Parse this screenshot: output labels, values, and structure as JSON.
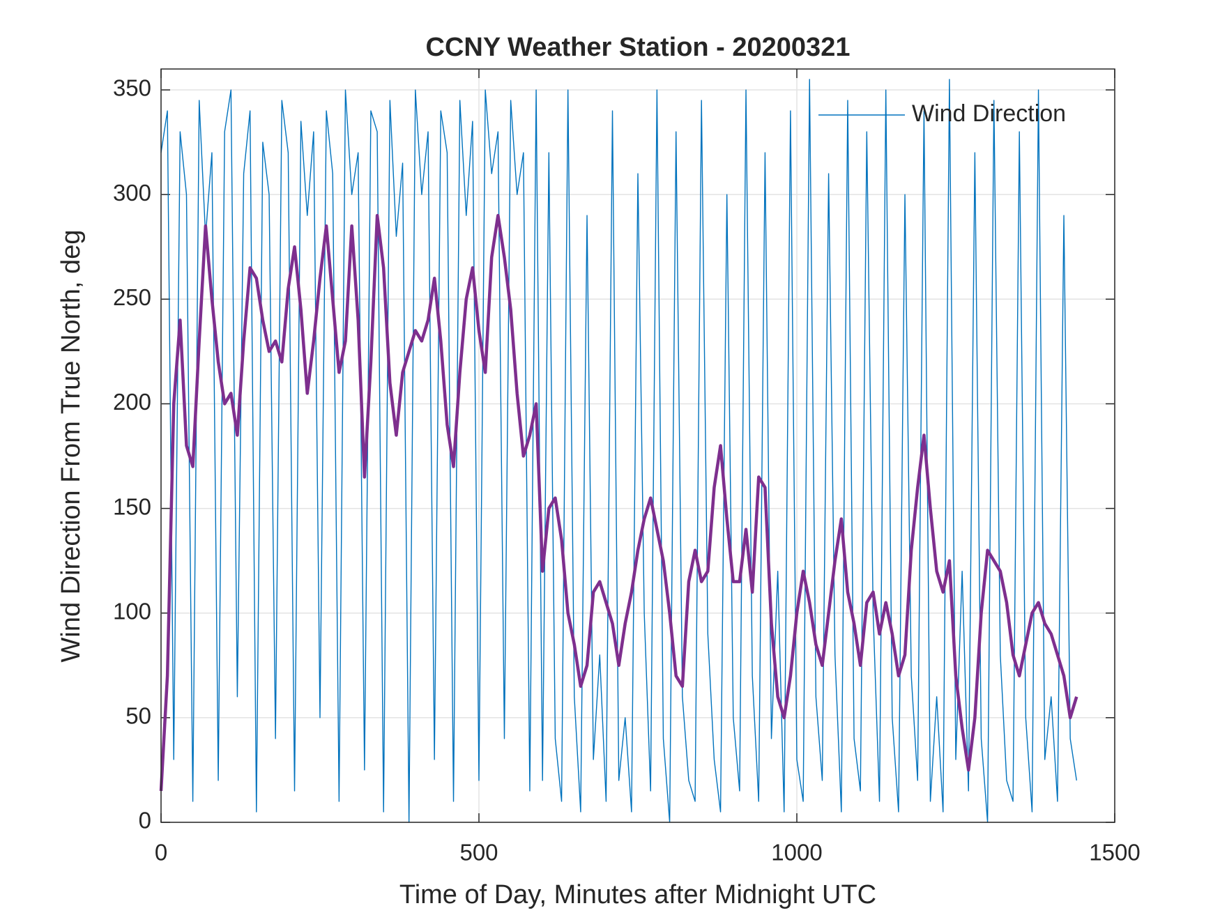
{
  "chart_data": {
    "type": "line",
    "title": "CCNY Weather Station - 20200321",
    "xlabel": "Time of Day, Minutes after Midnight UTC",
    "ylabel": "Wind Direction From True North, deg",
    "xlim": [
      0,
      1500
    ],
    "xticks": [
      0,
      500,
      1000,
      1500
    ],
    "ylim": [
      0,
      360
    ],
    "yticks": [
      0,
      50,
      100,
      150,
      200,
      250,
      300,
      350
    ],
    "grid": true,
    "legend": "northeast",
    "x": [
      0,
      10,
      20,
      30,
      40,
      50,
      60,
      70,
      80,
      90,
      100,
      110,
      120,
      130,
      140,
      150,
      160,
      170,
      180,
      190,
      200,
      210,
      220,
      230,
      240,
      250,
      260,
      270,
      280,
      290,
      300,
      310,
      320,
      330,
      340,
      350,
      360,
      370,
      380,
      390,
      400,
      410,
      420,
      430,
      440,
      450,
      460,
      470,
      480,
      490,
      500,
      510,
      520,
      530,
      540,
      550,
      560,
      570,
      580,
      590,
      600,
      610,
      620,
      630,
      640,
      650,
      660,
      670,
      680,
      690,
      700,
      710,
      720,
      730,
      740,
      750,
      760,
      770,
      780,
      790,
      800,
      810,
      820,
      830,
      840,
      850,
      860,
      870,
      880,
      890,
      900,
      910,
      920,
      930,
      940,
      950,
      960,
      970,
      980,
      990,
      1000,
      1010,
      1020,
      1030,
      1040,
      1050,
      1060,
      1070,
      1080,
      1090,
      1100,
      1110,
      1120,
      1130,
      1140,
      1150,
      1160,
      1170,
      1180,
      1190,
      1200,
      1210,
      1220,
      1230,
      1240,
      1250,
      1260,
      1270,
      1280,
      1290,
      1300,
      1310,
      1320,
      1330,
      1340,
      1350,
      1360,
      1370,
      1380,
      1390,
      1400,
      1410,
      1420,
      1430,
      1440
    ],
    "series": [
      {
        "name": "Wind Direction",
        "color": "#0072bd",
        "width": 1.4,
        "values": [
          320,
          340,
          30,
          330,
          300,
          10,
          345,
          280,
          320,
          20,
          330,
          350,
          60,
          310,
          340,
          5,
          325,
          300,
          40,
          345,
          320,
          15,
          335,
          290,
          330,
          50,
          340,
          310,
          10,
          350,
          300,
          320,
          25,
          340,
          330,
          5,
          345,
          280,
          315,
          0,
          350,
          300,
          330,
          30,
          340,
          320,
          10,
          345,
          290,
          335,
          20,
          350,
          310,
          330,
          40,
          345,
          300,
          320,
          15,
          350,
          20,
          320,
          40,
          10,
          350,
          60,
          5,
          290,
          30,
          80,
          10,
          340,
          20,
          50,
          5,
          310,
          100,
          15,
          350,
          40,
          0,
          330,
          60,
          20,
          10,
          345,
          90,
          30,
          5,
          300,
          50,
          15,
          350,
          70,
          10,
          320,
          40,
          120,
          5,
          340,
          30,
          10,
          355,
          60,
          20,
          310,
          80,
          5,
          345,
          40,
          15,
          330,
          100,
          10,
          350,
          50,
          5,
          300,
          70,
          20,
          340,
          10,
          60,
          5,
          355,
          30,
          120,
          15,
          320,
          40,
          0,
          345,
          80,
          20,
          10,
          330,
          50,
          5,
          350,
          30,
          60,
          10,
          290,
          40,
          20
        ]
      },
      {
        "color": "#7e2f8e",
        "width": 4.5,
        "values": [
          15,
          70,
          200,
          240,
          180,
          170,
          230,
          285,
          250,
          220,
          200,
          205,
          185,
          230,
          265,
          260,
          240,
          225,
          230,
          220,
          255,
          275,
          245,
          205,
          230,
          260,
          285,
          250,
          215,
          230,
          285,
          240,
          165,
          220,
          290,
          265,
          210,
          185,
          215,
          225,
          235,
          230,
          240,
          260,
          230,
          190,
          170,
          215,
          250,
          265,
          235,
          215,
          270,
          290,
          270,
          245,
          205,
          175,
          185,
          200,
          120,
          150,
          155,
          135,
          100,
          85,
          65,
          75,
          110,
          115,
          105,
          95,
          75,
          95,
          110,
          130,
          145,
          155,
          140,
          125,
          100,
          70,
          65,
          115,
          130,
          115,
          120,
          160,
          180,
          145,
          115,
          115,
          140,
          110,
          165,
          160,
          95,
          60,
          50,
          70,
          100,
          120,
          105,
          85,
          75,
          100,
          125,
          145,
          110,
          95,
          75,
          105,
          110,
          90,
          105,
          90,
          70,
          80,
          130,
          160,
          185,
          150,
          120,
          110,
          125,
          70,
          45,
          25,
          50,
          100,
          130,
          125,
          120,
          105,
          80,
          70,
          85,
          100,
          105,
          95,
          90,
          80,
          70,
          50,
          60
        ]
      }
    ]
  }
}
